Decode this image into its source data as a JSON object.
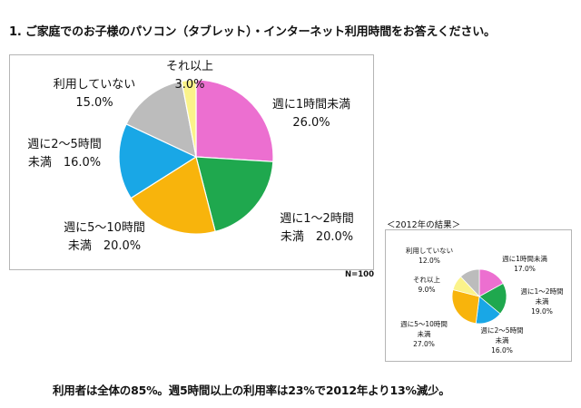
{
  "question": "1. ご家庭でのお子様のパソコン（タブレット）・インターネット利用時間をお答えください。",
  "main_n": "N=100",
  "sub_title": "＜2012年の結果＞",
  "conclusion": "利用者は全体の85%。週5時間以上の利用率は23%で2012年より13%減少。",
  "chart_data": [
    {
      "type": "pie",
      "title": "",
      "start_angle": 0,
      "direction": "clockwise",
      "slices": [
        {
          "lines": [
            "週に1時間未満",
            "26.0%"
          ],
          "value": 26.0,
          "color": "#ec6fd0"
        },
        {
          "lines": [
            "週に1～2時間",
            "未満　20.0%"
          ],
          "value": 20.0,
          "color": "#1fa84e"
        },
        {
          "lines": [
            "週に5～10時間",
            "未満　20.0%"
          ],
          "value": 20.0,
          "color": "#f8b40c"
        },
        {
          "lines": [
            "週に2～5時間",
            "未満　16.0%"
          ],
          "value": 16.0,
          "color": "#19a7e6"
        },
        {
          "lines": [
            "利用していない",
            "15.0%"
          ],
          "value": 15.0,
          "color": "#bcbcbc"
        },
        {
          "lines": [
            "それ以上",
            "3.0%"
          ],
          "value": 3.0,
          "color": "#fbf38a"
        }
      ]
    },
    {
      "type": "pie",
      "title": "＜2012年の結果＞",
      "start_angle": 0,
      "direction": "clockwise",
      "slices": [
        {
          "lines": [
            "週に1時間未満",
            "17.0%"
          ],
          "value": 17.0,
          "color": "#ec6fd0"
        },
        {
          "lines": [
            "週に1～2時間",
            "未満",
            "19.0%"
          ],
          "value": 19.0,
          "color": "#1fa84e"
        },
        {
          "lines": [
            "週に2～5時間",
            "未満",
            "16.0%"
          ],
          "value": 16.0,
          "color": "#19a7e6"
        },
        {
          "lines": [
            "週に5～10時間",
            "未満",
            "27.0%"
          ],
          "value": 27.0,
          "color": "#f8b40c"
        },
        {
          "lines": [
            "それ以上",
            "9.0%"
          ],
          "value": 9.0,
          "color": "#fbf38a"
        },
        {
          "lines": [
            "利用していない",
            "12.0%"
          ],
          "value": 12.0,
          "color": "#bcbcbc"
        }
      ]
    }
  ]
}
